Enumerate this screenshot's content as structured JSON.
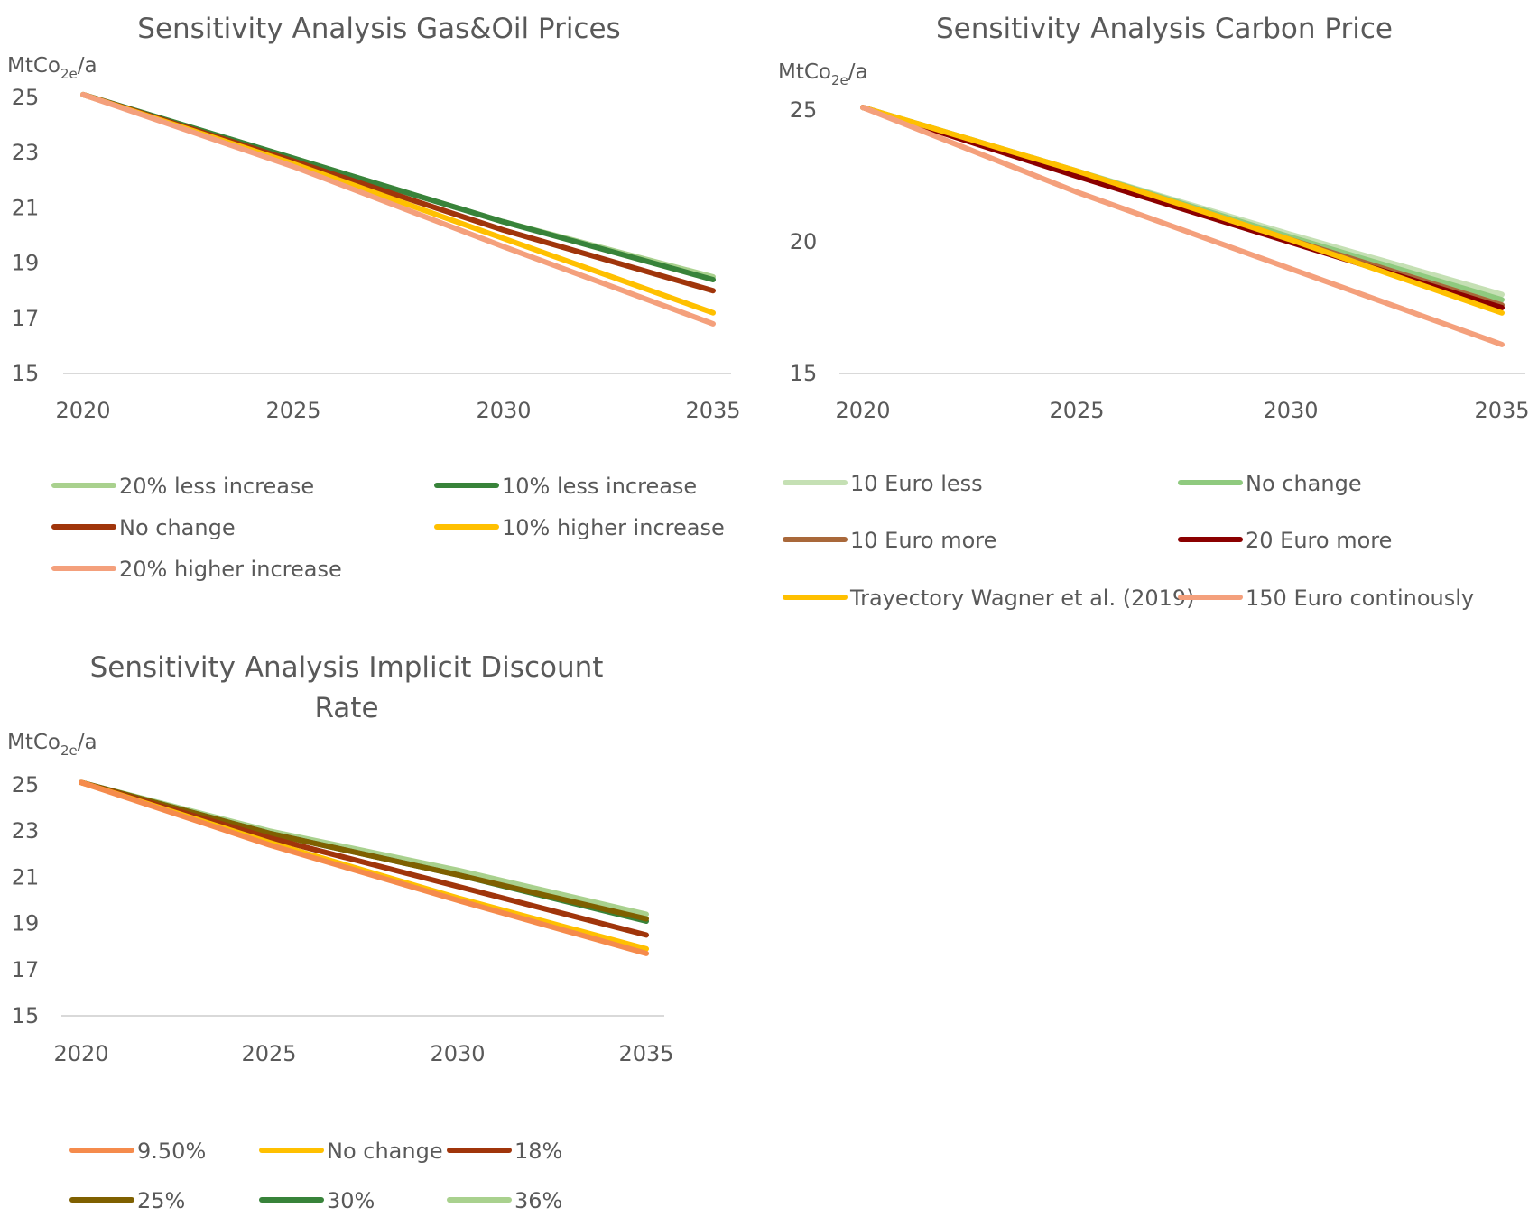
{
  "chart_data": [
    {
      "type": "line",
      "title": [
        "Sensitivity Analysis Gas&Oil Prices"
      ],
      "ylabel": {
        "main": "MtCo",
        "sub": "2e",
        "suffix": "/a"
      },
      "x": [
        2020,
        2025,
        2030,
        2035
      ],
      "xticks": [
        "2020",
        "2025",
        "2030",
        "2035"
      ],
      "ylim": [
        15,
        25
      ],
      "yticks": [
        "25",
        "23",
        "21",
        "19",
        "17",
        "15"
      ],
      "series": [
        {
          "name": "20% less increase",
          "color": "#a9d18e",
          "values": [
            25.1,
            22.8,
            20.5,
            18.5
          ]
        },
        {
          "name": "10% less increase",
          "color": "#38833a",
          "values": [
            25.1,
            22.8,
            20.5,
            18.4
          ]
        },
        {
          "name": "No change",
          "color": "#a0350b",
          "values": [
            25.1,
            22.7,
            20.2,
            18.0
          ]
        },
        {
          "name": "10% higher increase",
          "color": "#ffc000",
          "values": [
            25.1,
            22.6,
            19.9,
            17.2
          ]
        },
        {
          "name": "20% higher increase",
          "color": "#f4a07c",
          "values": [
            25.1,
            22.5,
            19.6,
            16.8
          ]
        }
      ],
      "legend_order": [
        0,
        1,
        2,
        3,
        4
      ]
    },
    {
      "type": "line",
      "title": [
        "Sensitivity Analysis Carbon Price"
      ],
      "ylabel": {
        "main": "MtCo",
        "sub": "2e",
        "suffix": "/a"
      },
      "x": [
        2020,
        2025,
        2030,
        2035
      ],
      "xticks": [
        "2020",
        "2025",
        "2030",
        "2035"
      ],
      "ylim": [
        15,
        25
      ],
      "yticks": [
        "25",
        "20",
        "15"
      ],
      "series": [
        {
          "name": "10 Euro less",
          "color": "#c5e0b4",
          "values": [
            25.1,
            22.7,
            20.3,
            18.0
          ]
        },
        {
          "name": "No change",
          "color": "#8fca7f",
          "values": [
            25.1,
            22.7,
            20.2,
            17.8
          ]
        },
        {
          "name": "10 Euro more",
          "color": "#a9683a",
          "values": [
            25.1,
            22.6,
            20.1,
            17.6
          ]
        },
        {
          "name": "20 Euro more",
          "color": "#8b0000",
          "values": [
            25.1,
            22.5,
            20.0,
            17.5
          ]
        },
        {
          "name": "Trayectory Wagner et al. (2019)",
          "color": "#ffc000",
          "values": [
            25.1,
            22.7,
            20.1,
            17.3
          ]
        },
        {
          "name": "150 Euro continously",
          "color": "#f4a07c",
          "values": [
            25.1,
            21.9,
            19.0,
            16.1
          ]
        }
      ],
      "legend_order": [
        0,
        1,
        2,
        3,
        4,
        5
      ]
    },
    {
      "type": "line",
      "title": [
        "Sensitivity Analysis Implicit Discount",
        "Rate"
      ],
      "ylabel": {
        "main": "MtCo",
        "sub": "2e",
        "suffix": "/a"
      },
      "x": [
        2020,
        2025,
        2030,
        2035
      ],
      "xticks": [
        "2020",
        "2025",
        "2030",
        "2035"
      ],
      "ylim": [
        15,
        25
      ],
      "yticks": [
        "25",
        "23",
        "21",
        "19",
        "17",
        "15"
      ],
      "series": [
        {
          "name": "36%",
          "color": "#a9d18e",
          "values": [
            25.1,
            23.0,
            21.3,
            19.4
          ]
        },
        {
          "name": "30%",
          "color": "#38833a",
          "values": [
            25.1,
            22.9,
            21.1,
            19.1
          ]
        },
        {
          "name": "25%",
          "color": "#7f6000",
          "values": [
            25.1,
            22.9,
            21.1,
            19.2
          ]
        },
        {
          "name": "18%",
          "color": "#a0350b",
          "values": [
            25.1,
            22.7,
            20.6,
            18.5
          ]
        },
        {
          "name": "No change",
          "color": "#ffc000",
          "values": [
            25.1,
            22.5,
            20.1,
            17.9
          ]
        },
        {
          "name": "9.50%",
          "color": "#f58b4c",
          "values": [
            25.1,
            22.4,
            20.0,
            17.7
          ]
        }
      ],
      "legend_order": [
        5,
        4,
        3,
        2,
        1,
        0
      ]
    }
  ]
}
